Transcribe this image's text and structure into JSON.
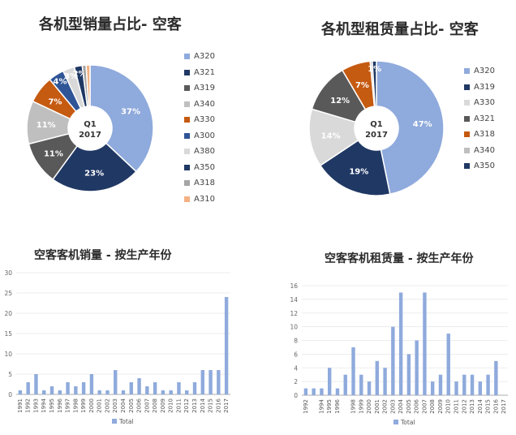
{
  "chart_data": [
    {
      "type": "pie",
      "title": "各机型销量占比- 空客",
      "center_label": [
        "Q1",
        "2017"
      ],
      "categories": [
        "A320",
        "A321",
        "A319",
        "A340",
        "A330",
        "A300",
        "A380",
        "A350",
        "A318",
        "A310"
      ],
      "values": [
        37,
        23,
        11,
        11,
        7,
        4,
        3,
        2,
        1,
        1
      ],
      "data_labels": [
        "37%",
        "23%",
        "11%",
        "11%",
        "7%",
        "4%",
        "3%",
        "2%",
        "",
        ""
      ],
      "colors": [
        "#8faadc",
        "#203864",
        "#595959",
        "#bfbfbf",
        "#c55a11",
        "#2f5597",
        "#d9d9d9",
        "#1f3864",
        "#a5a5a5",
        "#f4b183"
      ],
      "legend_position": "right"
    },
    {
      "type": "pie",
      "title": "各机型租赁量占比- 空客",
      "center_label": [
        "Q1",
        "2017"
      ],
      "categories": [
        "A320",
        "A319",
        "A330",
        "A321",
        "A318",
        "A340",
        "A350"
      ],
      "values": [
        47,
        19,
        14,
        12,
        7,
        0.5,
        1
      ],
      "data_labels": [
        "47%",
        "19%",
        "14%",
        "12%",
        "7%",
        "",
        "1%"
      ],
      "colors": [
        "#8faadc",
        "#203864",
        "#d9d9d9",
        "#595959",
        "#c55a11",
        "#bfbfbf",
        "#1f3864"
      ],
      "legend_position": "right"
    },
    {
      "type": "bar",
      "title": "空客客机销量 - 按生产年份",
      "categories": [
        "1991",
        "1992",
        "1993",
        "1994",
        "1995",
        "1996",
        "1997",
        "1998",
        "1999",
        "2000",
        "2001",
        "2002",
        "2003",
        "2004",
        "2005",
        "2006",
        "2007",
        "2008",
        "2009",
        "2010",
        "2011",
        "2012",
        "2013",
        "2014",
        "2015",
        "2016",
        "2017"
      ],
      "tick_labels": [
        "1991",
        "1992",
        "1993",
        "1994",
        "1995",
        "1996",
        "1997",
        "1998",
        "1999",
        "2000",
        "2001",
        "2002",
        "2003",
        "2004",
        "2005",
        "2006",
        "2007",
        "2008",
        "2009",
        "2010",
        "2011",
        "2012",
        "2013",
        "2014",
        "2015",
        "2016",
        "2017"
      ],
      "values": [
        1,
        3,
        5,
        1,
        2,
        1,
        3,
        2,
        3,
        5,
        1,
        1,
        6,
        1,
        3,
        4,
        2,
        3,
        1,
        1,
        3,
        1,
        3,
        6,
        6,
        6,
        24
      ],
      "series_name": "Total",
      "ylim": [
        0,
        30
      ],
      "yticks": [
        0,
        5,
        10,
        15,
        20,
        25,
        30
      ],
      "color": "#8faadc",
      "legend_position": "bottom"
    },
    {
      "type": "bar",
      "title": "空客客机租赁量 - 按生产年份",
      "categories": [
        "1992",
        "1993",
        "1994",
        "1995",
        "1996",
        "1997",
        "1998",
        "1999",
        "2000",
        "2001",
        "2002",
        "2003",
        "2004",
        "2005",
        "2006",
        "2007",
        "2008",
        "2009",
        "2010",
        "2011",
        "2012",
        "2013",
        "2014",
        "2015",
        "2016",
        "2017"
      ],
      "tick_labels": [
        "1992",
        "",
        "1994",
        "1995",
        "1996",
        "",
        "1998",
        "1999",
        "2000",
        "2001",
        "2002",
        "2003",
        "2004",
        "2005",
        "2006",
        "2007",
        "2008",
        "2009",
        "2010",
        "2011",
        "2012",
        "2013",
        "2014",
        "2015",
        "2016",
        "2017"
      ],
      "values": [
        1,
        1,
        1,
        4,
        1,
        3,
        7,
        3,
        2,
        5,
        4,
        10,
        15,
        6,
        8,
        15,
        2,
        3,
        9,
        2,
        3,
        3,
        2,
        3,
        5,
        0
      ],
      "series_name": "Total",
      "ylim": [
        0,
        16
      ],
      "yticks": [
        0,
        2,
        4,
        6,
        8,
        10,
        12,
        14,
        16
      ],
      "color": "#8faadc",
      "legend_position": "bottom"
    }
  ]
}
